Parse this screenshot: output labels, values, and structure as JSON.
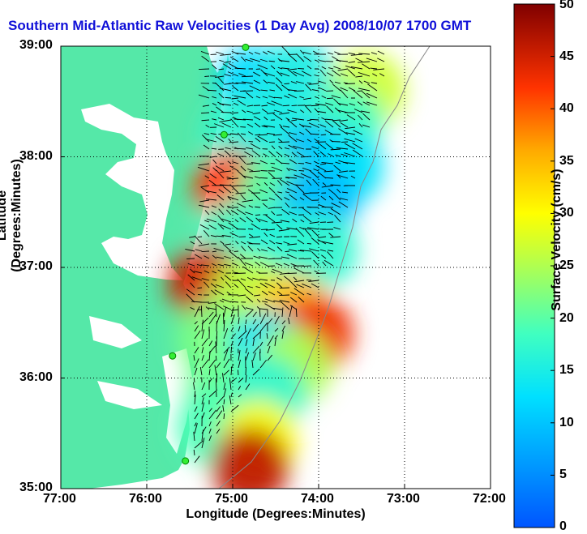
{
  "chart_data": {
    "type": "heatmap",
    "title": "Southern Mid-Atlantic Raw Velocities (1 Day Avg) 2008/10/07 1700 GMT",
    "xlabel": "Longitude (Degrees:Minutes)",
    "ylabel": "Latitude (Degrees:Minutes)",
    "colorbar_label": "Surface Velocity (cm/s)",
    "x_ticks": [
      "77:00",
      "76:00",
      "75:00",
      "74:00",
      "73:00",
      "72:00"
    ],
    "y_ticks": [
      "39:00",
      "38:00",
      "37:00",
      "36:00",
      "35:00"
    ],
    "colorbar_ticks": [
      "0",
      "5",
      "10",
      "15",
      "20",
      "25",
      "30",
      "35",
      "40",
      "45",
      "50"
    ],
    "xlim": [
      -77,
      -72
    ],
    "ylim": [
      35,
      39
    ],
    "clim": [
      0,
      50
    ],
    "grid": true,
    "colors": {
      "land": "#55e8a8",
      "title": "#1010d8"
    },
    "cells": [
      {
        "lon": -74.75,
        "lat": 38.65,
        "v": 12
      },
      {
        "lon": -74.25,
        "lat": 38.7,
        "v": 15
      },
      {
        "lon": -73.45,
        "lat": 38.6,
        "v": 27
      },
      {
        "lon": -73.7,
        "lat": 38.3,
        "v": 18
      },
      {
        "lon": -74.9,
        "lat": 38.2,
        "v": 17
      },
      {
        "lon": -74.5,
        "lat": 38.1,
        "v": 15
      },
      {
        "lon": -74.0,
        "lat": 37.95,
        "v": 8
      },
      {
        "lon": -73.7,
        "lat": 37.9,
        "v": 13
      },
      {
        "lon": -75.0,
        "lat": 37.7,
        "v": 42
      },
      {
        "lon": -74.5,
        "lat": 37.7,
        "v": 20
      },
      {
        "lon": -74.0,
        "lat": 37.6,
        "v": 9
      },
      {
        "lon": -75.0,
        "lat": 37.25,
        "v": 18
      },
      {
        "lon": -74.5,
        "lat": 37.2,
        "v": 16
      },
      {
        "lon": -74.0,
        "lat": 37.15,
        "v": 17
      },
      {
        "lon": -75.3,
        "lat": 36.85,
        "v": 45
      },
      {
        "lon": -74.8,
        "lat": 36.75,
        "v": 26
      },
      {
        "lon": -74.3,
        "lat": 36.6,
        "v": 34
      },
      {
        "lon": -74.05,
        "lat": 36.4,
        "v": 43
      },
      {
        "lon": -75.2,
        "lat": 36.35,
        "v": 22
      },
      {
        "lon": -74.6,
        "lat": 36.25,
        "v": 13
      },
      {
        "lon": -74.3,
        "lat": 36.1,
        "v": 25
      },
      {
        "lon": -75.1,
        "lat": 35.9,
        "v": 21
      },
      {
        "lon": -74.6,
        "lat": 35.85,
        "v": 17
      },
      {
        "lon": -75.2,
        "lat": 35.55,
        "v": 19
      },
      {
        "lon": -74.7,
        "lat": 35.45,
        "v": 30
      },
      {
        "lon": -74.8,
        "lat": 35.2,
        "v": 46
      }
    ],
    "stations": [
      {
        "lon": -74.85,
        "lat": 38.99
      },
      {
        "lon": -75.1,
        "lat": 38.2
      },
      {
        "lon": -75.7,
        "lat": 36.2
      },
      {
        "lon": -75.55,
        "lat": 35.25
      }
    ]
  }
}
